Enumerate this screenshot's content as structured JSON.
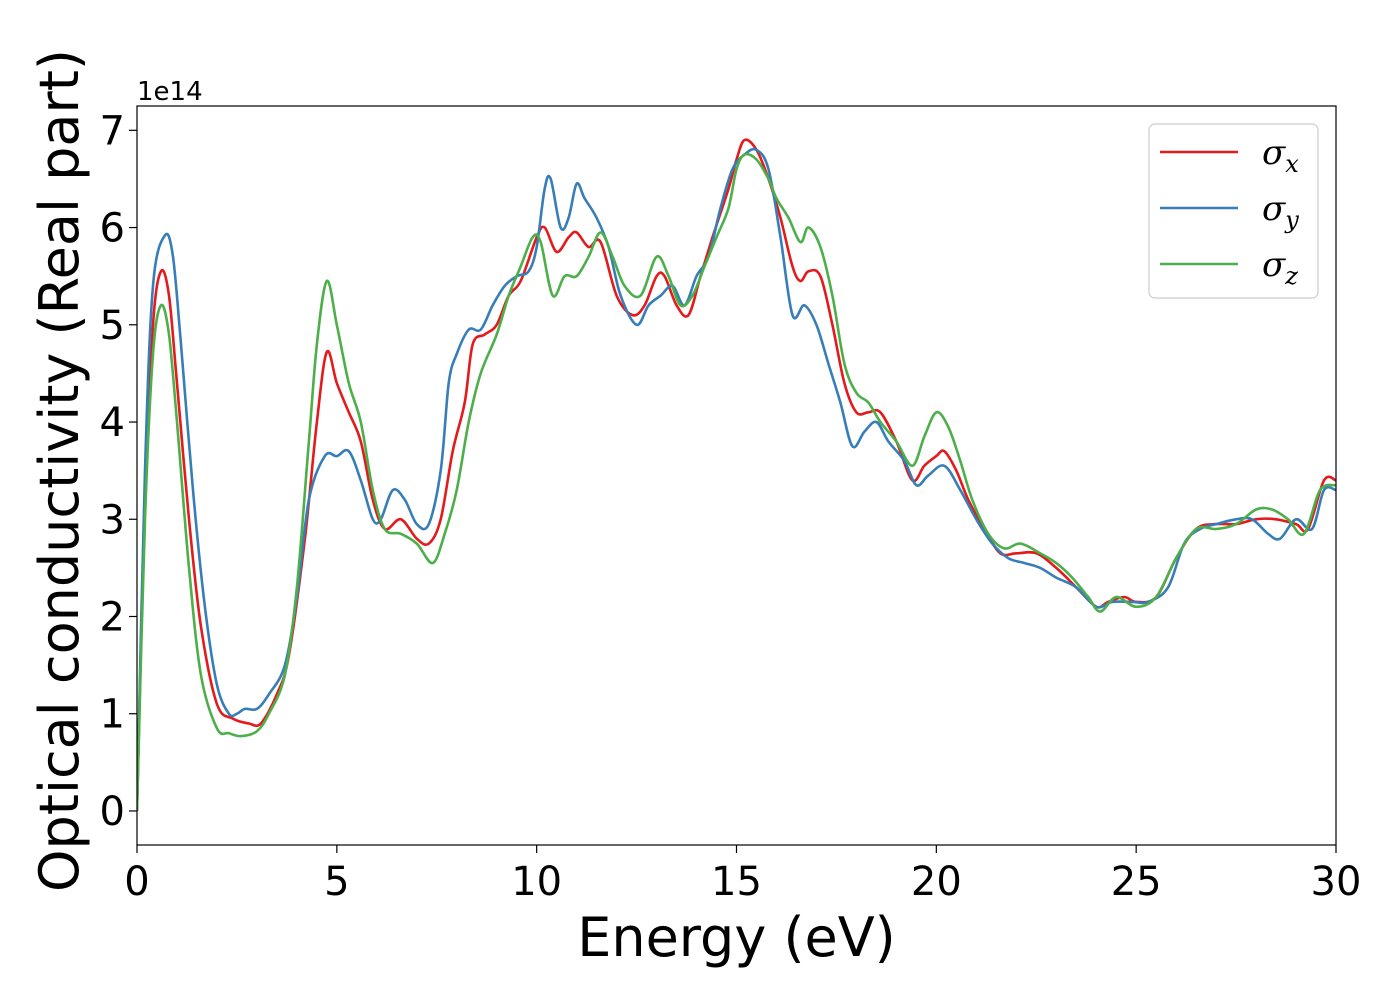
{
  "chart_data": {
    "type": "line",
    "title": "",
    "xlabel": "Energy (eV)",
    "ylabel": "Optical conductivity (Real part)",
    "y_offset_label": "1e14",
    "xlim": [
      0,
      30
    ],
    "ylim": [
      -0.35,
      7.25
    ],
    "x_ticks": [
      0,
      5,
      10,
      15,
      20,
      25,
      30
    ],
    "x_tick_labels": [
      "0",
      "5",
      "10",
      "15",
      "20",
      "25",
      "30"
    ],
    "y_ticks": [
      0,
      1,
      2,
      3,
      4,
      5,
      6,
      7
    ],
    "y_tick_labels": [
      "0",
      "1",
      "2",
      "3",
      "4",
      "5",
      "6",
      "7"
    ],
    "grid": false,
    "legend_position": "top-right",
    "series": [
      {
        "name": "σx",
        "legend_main": "σ",
        "legend_sub": "x",
        "color": "#e41a1c",
        "points": [
          [
            0,
            0
          ],
          [
            0.2,
            3.2
          ],
          [
            0.4,
            5.0
          ],
          [
            0.6,
            5.55
          ],
          [
            0.8,
            5.3
          ],
          [
            1.0,
            4.4
          ],
          [
            1.3,
            3.0
          ],
          [
            1.6,
            1.9
          ],
          [
            2.0,
            1.1
          ],
          [
            2.4,
            0.95
          ],
          [
            2.8,
            0.9
          ],
          [
            3.1,
            0.9
          ],
          [
            3.5,
            1.2
          ],
          [
            3.8,
            1.6
          ],
          [
            4.2,
            2.8
          ],
          [
            4.5,
            4.0
          ],
          [
            4.75,
            4.72
          ],
          [
            5.0,
            4.4
          ],
          [
            5.3,
            4.1
          ],
          [
            5.6,
            3.8
          ],
          [
            5.9,
            3.2
          ],
          [
            6.2,
            2.9
          ],
          [
            6.6,
            3.0
          ],
          [
            7.0,
            2.8
          ],
          [
            7.3,
            2.75
          ],
          [
            7.6,
            3.0
          ],
          [
            7.9,
            3.7
          ],
          [
            8.2,
            4.2
          ],
          [
            8.4,
            4.8
          ],
          [
            8.7,
            4.9
          ],
          [
            9.0,
            5.0
          ],
          [
            9.3,
            5.3
          ],
          [
            9.6,
            5.45
          ],
          [
            10.0,
            5.9
          ],
          [
            10.2,
            6.0
          ],
          [
            10.5,
            5.75
          ],
          [
            10.8,
            5.9
          ],
          [
            11.0,
            5.95
          ],
          [
            11.3,
            5.8
          ],
          [
            11.6,
            5.85
          ],
          [
            12.0,
            5.3
          ],
          [
            12.4,
            5.1
          ],
          [
            12.7,
            5.2
          ],
          [
            13.0,
            5.5
          ],
          [
            13.2,
            5.5
          ],
          [
            13.5,
            5.2
          ],
          [
            13.8,
            5.1
          ],
          [
            14.1,
            5.5
          ],
          [
            14.4,
            5.9
          ],
          [
            14.8,
            6.4
          ],
          [
            15.0,
            6.7
          ],
          [
            15.2,
            6.9
          ],
          [
            15.5,
            6.8
          ],
          [
            15.8,
            6.5
          ],
          [
            16.1,
            6.1
          ],
          [
            16.4,
            5.6
          ],
          [
            16.6,
            5.45
          ],
          [
            16.8,
            5.55
          ],
          [
            17.1,
            5.5
          ],
          [
            17.4,
            5.0
          ],
          [
            17.7,
            4.4
          ],
          [
            18.0,
            4.1
          ],
          [
            18.3,
            4.1
          ],
          [
            18.6,
            4.1
          ],
          [
            19.0,
            3.8
          ],
          [
            19.4,
            3.4
          ],
          [
            19.7,
            3.55
          ],
          [
            20.0,
            3.65
          ],
          [
            20.2,
            3.7
          ],
          [
            20.5,
            3.5
          ],
          [
            20.8,
            3.2
          ],
          [
            21.2,
            2.9
          ],
          [
            21.6,
            2.65
          ],
          [
            22.0,
            2.65
          ],
          [
            22.5,
            2.65
          ],
          [
            23.0,
            2.5
          ],
          [
            23.5,
            2.3
          ],
          [
            24.0,
            2.1
          ],
          [
            24.3,
            2.15
          ],
          [
            24.7,
            2.2
          ],
          [
            25.0,
            2.15
          ],
          [
            25.5,
            2.2
          ],
          [
            26.0,
            2.6
          ],
          [
            26.5,
            2.9
          ],
          [
            27.0,
            2.95
          ],
          [
            27.5,
            2.95
          ],
          [
            28.0,
            3.0
          ],
          [
            28.5,
            3.0
          ],
          [
            29.0,
            2.95
          ],
          [
            29.3,
            2.9
          ],
          [
            29.7,
            3.4
          ],
          [
            30.0,
            3.4
          ]
        ]
      },
      {
        "name": "σy",
        "legend_main": "σ",
        "legend_sub": "y",
        "color": "#377eb8",
        "points": [
          [
            0,
            0
          ],
          [
            0.2,
            3.5
          ],
          [
            0.4,
            5.4
          ],
          [
            0.7,
            5.92
          ],
          [
            0.9,
            5.7
          ],
          [
            1.1,
            4.8
          ],
          [
            1.4,
            3.3
          ],
          [
            1.7,
            2.1
          ],
          [
            2.0,
            1.3
          ],
          [
            2.3,
            1.0
          ],
          [
            2.5,
            1.0
          ],
          [
            2.7,
            1.05
          ],
          [
            3.0,
            1.05
          ],
          [
            3.3,
            1.2
          ],
          [
            3.7,
            1.5
          ],
          [
            4.0,
            2.2
          ],
          [
            4.3,
            3.2
          ],
          [
            4.7,
            3.65
          ],
          [
            5.0,
            3.65
          ],
          [
            5.3,
            3.7
          ],
          [
            5.6,
            3.4
          ],
          [
            5.9,
            3.0
          ],
          [
            6.1,
            3.0
          ],
          [
            6.4,
            3.3
          ],
          [
            6.7,
            3.2
          ],
          [
            7.0,
            2.95
          ],
          [
            7.3,
            2.95
          ],
          [
            7.6,
            3.5
          ],
          [
            7.8,
            4.4
          ],
          [
            8.0,
            4.7
          ],
          [
            8.3,
            4.95
          ],
          [
            8.6,
            4.95
          ],
          [
            8.9,
            5.2
          ],
          [
            9.2,
            5.4
          ],
          [
            9.5,
            5.5
          ],
          [
            9.8,
            5.55
          ],
          [
            10.0,
            5.8
          ],
          [
            10.2,
            6.4
          ],
          [
            10.35,
            6.5
          ],
          [
            10.6,
            6.0
          ],
          [
            10.8,
            6.1
          ],
          [
            11.0,
            6.45
          ],
          [
            11.2,
            6.3
          ],
          [
            11.5,
            6.1
          ],
          [
            11.8,
            5.8
          ],
          [
            12.1,
            5.3
          ],
          [
            12.5,
            5.0
          ],
          [
            12.8,
            5.2
          ],
          [
            13.1,
            5.3
          ],
          [
            13.4,
            5.4
          ],
          [
            13.7,
            5.2
          ],
          [
            14.0,
            5.5
          ],
          [
            14.3,
            5.7
          ],
          [
            14.6,
            6.2
          ],
          [
            14.9,
            6.6
          ],
          [
            15.2,
            6.75
          ],
          [
            15.5,
            6.8
          ],
          [
            15.8,
            6.6
          ],
          [
            16.1,
            5.9
          ],
          [
            16.4,
            5.1
          ],
          [
            16.7,
            5.2
          ],
          [
            17.0,
            5.0
          ],
          [
            17.3,
            4.6
          ],
          [
            17.6,
            4.2
          ],
          [
            17.9,
            3.75
          ],
          [
            18.2,
            3.9
          ],
          [
            18.5,
            4.0
          ],
          [
            18.8,
            3.8
          ],
          [
            19.2,
            3.6
          ],
          [
            19.5,
            3.35
          ],
          [
            19.8,
            3.45
          ],
          [
            20.2,
            3.55
          ],
          [
            20.6,
            3.3
          ],
          [
            21.0,
            3.0
          ],
          [
            21.4,
            2.75
          ],
          [
            21.8,
            2.6
          ],
          [
            22.2,
            2.55
          ],
          [
            22.6,
            2.5
          ],
          [
            23.0,
            2.4
          ],
          [
            23.5,
            2.3
          ],
          [
            24.0,
            2.1
          ],
          [
            24.4,
            2.15
          ],
          [
            24.9,
            2.15
          ],
          [
            25.3,
            2.15
          ],
          [
            25.8,
            2.3
          ],
          [
            26.2,
            2.75
          ],
          [
            26.6,
            2.9
          ],
          [
            27.0,
            2.95
          ],
          [
            27.5,
            3.0
          ],
          [
            27.9,
            3.0
          ],
          [
            28.3,
            2.85
          ],
          [
            28.6,
            2.8
          ],
          [
            29.0,
            3.0
          ],
          [
            29.4,
            2.9
          ],
          [
            29.7,
            3.3
          ],
          [
            30.0,
            3.3
          ]
        ]
      },
      {
        "name": "σz",
        "legend_main": "σ",
        "legend_sub": "z",
        "color": "#4daf4a",
        "points": [
          [
            0,
            0
          ],
          [
            0.2,
            3.0
          ],
          [
            0.4,
            4.7
          ],
          [
            0.6,
            5.2
          ],
          [
            0.8,
            4.9
          ],
          [
            1.0,
            4.0
          ],
          [
            1.3,
            2.5
          ],
          [
            1.6,
            1.4
          ],
          [
            2.0,
            0.85
          ],
          [
            2.3,
            0.8
          ],
          [
            2.6,
            0.77
          ],
          [
            3.0,
            0.82
          ],
          [
            3.3,
            1.0
          ],
          [
            3.7,
            1.4
          ],
          [
            4.0,
            2.3
          ],
          [
            4.3,
            3.8
          ],
          [
            4.5,
            4.8
          ],
          [
            4.75,
            5.45
          ],
          [
            5.0,
            5.0
          ],
          [
            5.3,
            4.4
          ],
          [
            5.6,
            4.0
          ],
          [
            5.9,
            3.3
          ],
          [
            6.2,
            2.9
          ],
          [
            6.6,
            2.85
          ],
          [
            7.0,
            2.75
          ],
          [
            7.4,
            2.55
          ],
          [
            7.7,
            2.85
          ],
          [
            8.0,
            3.3
          ],
          [
            8.3,
            4.0
          ],
          [
            8.6,
            4.5
          ],
          [
            9.0,
            4.9
          ],
          [
            9.3,
            5.3
          ],
          [
            9.6,
            5.6
          ],
          [
            9.9,
            5.9
          ],
          [
            10.1,
            5.85
          ],
          [
            10.4,
            5.3
          ],
          [
            10.7,
            5.5
          ],
          [
            11.0,
            5.5
          ],
          [
            11.3,
            5.7
          ],
          [
            11.6,
            5.95
          ],
          [
            11.9,
            5.7
          ],
          [
            12.2,
            5.4
          ],
          [
            12.6,
            5.3
          ],
          [
            13.0,
            5.7
          ],
          [
            13.3,
            5.5
          ],
          [
            13.6,
            5.2
          ],
          [
            13.9,
            5.3
          ],
          [
            14.2,
            5.6
          ],
          [
            14.5,
            5.9
          ],
          [
            14.8,
            6.2
          ],
          [
            15.0,
            6.6
          ],
          [
            15.2,
            6.75
          ],
          [
            15.5,
            6.7
          ],
          [
            15.8,
            6.5
          ],
          [
            16.0,
            6.3
          ],
          [
            16.3,
            6.1
          ],
          [
            16.6,
            5.85
          ],
          [
            16.8,
            6.0
          ],
          [
            17.1,
            5.8
          ],
          [
            17.4,
            5.3
          ],
          [
            17.7,
            4.6
          ],
          [
            18.0,
            4.3
          ],
          [
            18.3,
            4.2
          ],
          [
            18.6,
            4.0
          ],
          [
            19.0,
            3.8
          ],
          [
            19.4,
            3.55
          ],
          [
            19.7,
            3.85
          ],
          [
            20.0,
            4.1
          ],
          [
            20.3,
            3.95
          ],
          [
            20.6,
            3.6
          ],
          [
            20.9,
            3.2
          ],
          [
            21.3,
            2.85
          ],
          [
            21.7,
            2.7
          ],
          [
            22.1,
            2.75
          ],
          [
            22.6,
            2.65
          ],
          [
            23.0,
            2.55
          ],
          [
            23.4,
            2.4
          ],
          [
            23.8,
            2.2
          ],
          [
            24.1,
            2.05
          ],
          [
            24.5,
            2.2
          ],
          [
            25.0,
            2.1
          ],
          [
            25.5,
            2.2
          ],
          [
            26.0,
            2.6
          ],
          [
            26.5,
            2.9
          ],
          [
            27.0,
            2.9
          ],
          [
            27.5,
            2.95
          ],
          [
            28.0,
            3.1
          ],
          [
            28.4,
            3.1
          ],
          [
            28.8,
            3.0
          ],
          [
            29.2,
            2.85
          ],
          [
            29.6,
            3.3
          ],
          [
            30.0,
            3.35
          ]
        ]
      }
    ]
  }
}
